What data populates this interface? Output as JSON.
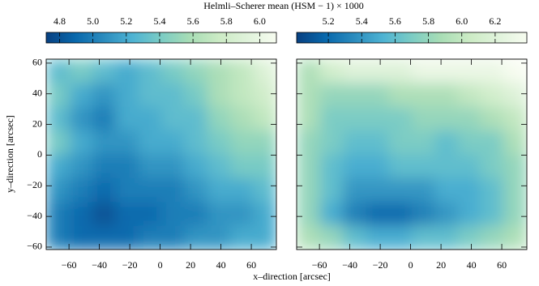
{
  "title": "Helmli–Scherer mean  (HSM − 1) × 1000",
  "xlabel": "x–direction  [arcsec]",
  "ylabel": "y–direction  [arcsec]",
  "chart_data": [
    {
      "type": "heatmap",
      "colormap": [
        "#084081",
        "#0868ac",
        "#2b8cbe",
        "#4eb3d3",
        "#7bccc4",
        "#a8ddb5",
        "#ccebc5",
        "#e0f3db",
        "#f7fcf0"
      ],
      "clim": [
        4.72,
        6.1
      ],
      "cticks": [
        4.8,
        {
          "value": 5.0,
          "label": "5.0"
        },
        5.2,
        5.4,
        5.6,
        5.8,
        {
          "value": 6.0,
          "label": "6.0"
        }
      ],
      "xlim": [
        -75,
        76.5
      ],
      "ylim": [
        -61.6,
        62.6
      ],
      "xticks": [
        {
          "value": -60,
          "label": "−60"
        },
        {
          "value": -40,
          "label": "−40"
        },
        {
          "value": -20,
          "label": "−20"
        },
        0,
        20,
        40,
        60
      ],
      "yticks": [
        {
          "value": -60,
          "label": "−60"
        },
        {
          "value": -40,
          "label": "−40"
        },
        {
          "value": -20,
          "label": "−20"
        },
        0,
        20,
        40,
        60
      ],
      "show_ytick_labels": true,
      "values": [
        [
          5.3,
          5.4,
          5.3,
          5.2,
          5.3,
          5.4,
          5.5,
          5.6,
          5.7,
          5.9
        ],
        [
          5.4,
          5.2,
          5.1,
          5.2,
          5.3,
          5.3,
          5.4,
          5.6,
          5.7,
          5.8
        ],
        [
          5.3,
          5.1,
          5.0,
          5.2,
          5.2,
          5.3,
          5.3,
          5.5,
          5.6,
          5.7
        ],
        [
          5.4,
          5.2,
          5.1,
          5.1,
          5.2,
          5.2,
          5.3,
          5.4,
          5.5,
          5.5
        ],
        [
          5.2,
          5.1,
          5.0,
          5.0,
          5.1,
          5.1,
          5.2,
          5.3,
          5.4,
          5.4
        ],
        [
          5.1,
          5.0,
          4.9,
          5.0,
          5.0,
          5.0,
          5.1,
          5.2,
          5.2,
          5.3
        ],
        [
          5.0,
          4.9,
          4.8,
          4.9,
          4.9,
          5.0,
          5.0,
          5.1,
          5.1,
          5.2
        ],
        [
          5.0,
          4.9,
          4.9,
          4.9,
          5.0,
          5.0,
          5.1,
          5.1,
          5.2,
          5.2
        ]
      ]
    },
    {
      "type": "heatmap",
      "colormap": [
        "#084081",
        "#0868ac",
        "#2b8cbe",
        "#4eb3d3",
        "#7bccc4",
        "#a8ddb5",
        "#ccebc5",
        "#e0f3db",
        "#f7fcf0"
      ],
      "clim": [
        5.01,
        6.39
      ],
      "cticks": [
        5.2,
        5.4,
        5.6,
        5.8,
        {
          "value": 6.0,
          "label": "6.0"
        },
        6.2
      ],
      "xlim": [
        -75,
        76.5
      ],
      "ylim": [
        -61.6,
        62.6
      ],
      "xticks": [
        {
          "value": -60,
          "label": "−60"
        },
        {
          "value": -40,
          "label": "−40"
        },
        {
          "value": -20,
          "label": "−20"
        },
        0,
        20,
        40,
        60
      ],
      "yticks": [
        -60,
        -40,
        -20,
        0,
        20,
        40,
        60
      ],
      "show_ytick_labels": false,
      "values": [
        [
          5.9,
          6.1,
          6.2,
          6.2,
          6.2,
          6.3,
          6.3,
          6.3,
          6.3,
          6.4
        ],
        [
          5.9,
          5.8,
          5.8,
          5.8,
          5.9,
          5.9,
          5.9,
          6.0,
          6.1,
          6.2
        ],
        [
          5.9,
          5.7,
          5.7,
          5.7,
          5.7,
          5.8,
          5.8,
          5.8,
          5.9,
          6.0
        ],
        [
          5.8,
          5.7,
          5.6,
          5.6,
          5.7,
          5.7,
          5.6,
          5.7,
          5.7,
          5.9
        ],
        [
          5.8,
          5.6,
          5.5,
          5.5,
          5.6,
          5.6,
          5.6,
          5.6,
          5.7,
          5.8
        ],
        [
          5.8,
          5.6,
          5.4,
          5.4,
          5.4,
          5.4,
          5.5,
          5.5,
          5.6,
          5.8
        ],
        [
          5.8,
          5.5,
          5.3,
          5.2,
          5.2,
          5.3,
          5.4,
          5.5,
          5.6,
          5.8
        ],
        [
          5.9,
          5.8,
          5.6,
          5.5,
          5.5,
          5.6,
          5.6,
          5.7,
          5.8,
          5.9
        ]
      ]
    }
  ]
}
